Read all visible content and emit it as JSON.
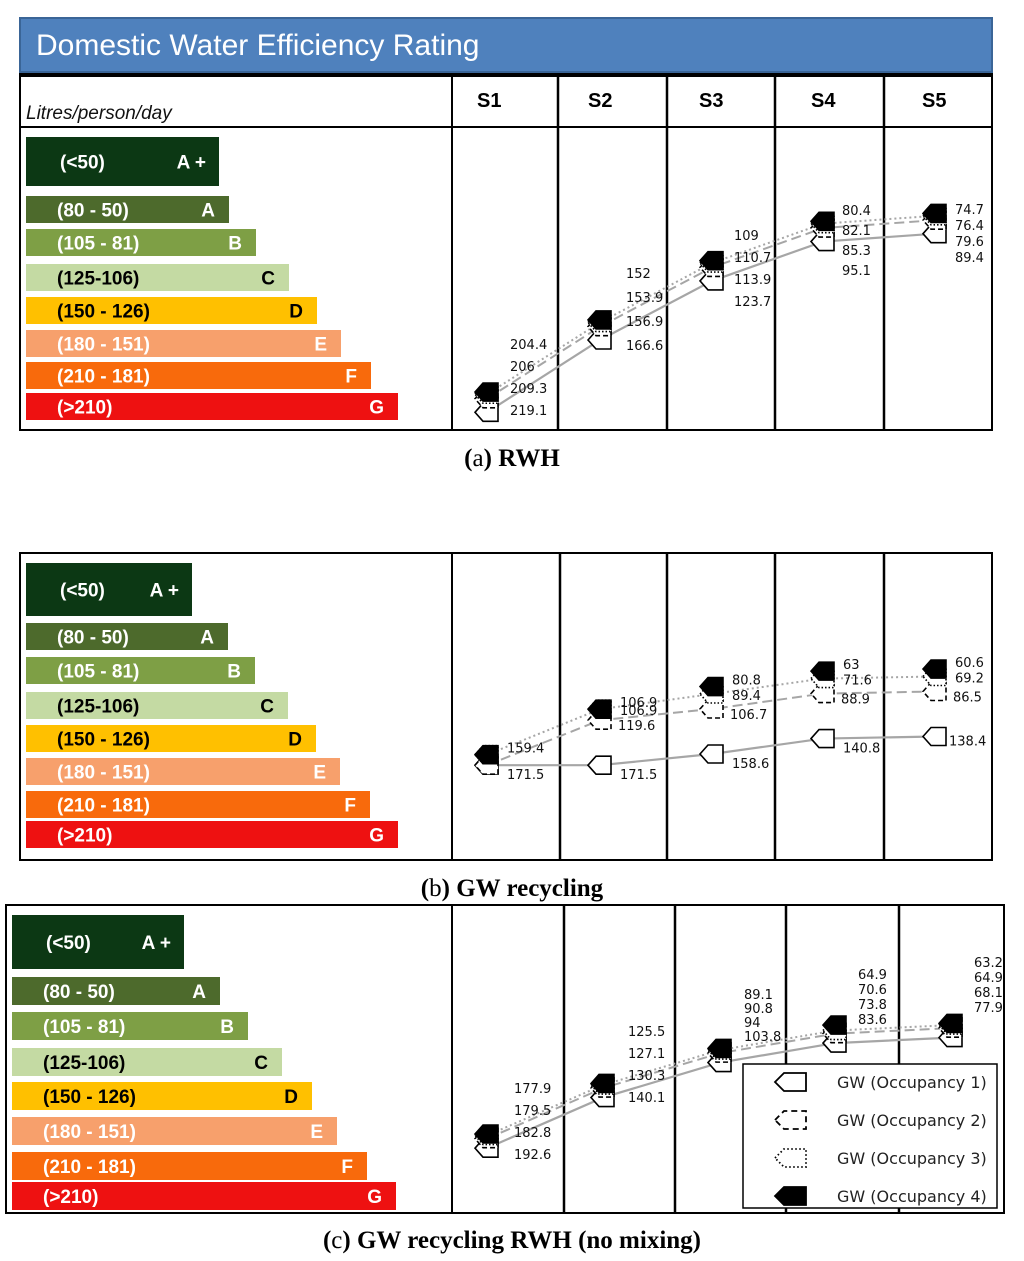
{
  "header": {
    "title": "Domestic Water Efficiency Rating",
    "units": "Litres/person/day",
    "columns": [
      "S1",
      "S2",
      "S3",
      "S4",
      "S5"
    ]
  },
  "rating_bands": [
    {
      "range": "(<50)",
      "grade": "A +",
      "color": "#0c3814"
    },
    {
      "range": "(80 - 50)",
      "grade": "A",
      "color": "#4d6a2c"
    },
    {
      "range": "(105 - 81)",
      "grade": "B",
      "color": "#7e9f45"
    },
    {
      "range": "(125-106)",
      "grade": "C",
      "color": "#c4daa3"
    },
    {
      "range": "(150 - 126)",
      "grade": "D",
      "color": "#ffc000"
    },
    {
      "range": "(180 - 151)",
      "grade": "E",
      "color": "#f7a06c"
    },
    {
      "range": "(210 - 181)",
      "grade": "F",
      "color": "#f86a0c"
    },
    {
      "range": "(>210)",
      "grade": "G",
      "color": "#ee1111"
    }
  ],
  "colors": {
    "title_bar": "#4f81bd",
    "series_line": "#a6a6a6",
    "marker_fill": "#000000"
  },
  "legend": {
    "occupancy_1": "GW (Occupancy 1)",
    "occupancy_2": "GW (Occupancy 2)",
    "occupancy_3": "GW (Occupancy 3)",
    "occupancy_4": "GW (Occupancy 4)"
  },
  "chart_data": [
    {
      "type": "line",
      "title": "(a) RWH",
      "caption_letter": "a",
      "caption_text": " RWH",
      "categories": [
        "S1",
        "S2",
        "S3",
        "S4",
        "S5"
      ],
      "ylabel": "Litres/person/day",
      "series": [
        {
          "name": "GW (Occupancy 1)",
          "values": [
            219.1,
            166.6,
            123.7,
            95.1,
            89.4
          ]
        },
        {
          "name": "GW (Occupancy 2)",
          "values": [
            209.3,
            156.9,
            113.9,
            85.3,
            79.6
          ]
        },
        {
          "name": "GW (Occupancy 3)",
          "values": [
            206,
            153.9,
            110.7,
            82.1,
            76.4
          ]
        },
        {
          "name": "GW (Occupancy 4)",
          "values": [
            204.4,
            152,
            109,
            80.4,
            74.7
          ]
        }
      ]
    },
    {
      "type": "line",
      "title": "(b) GW recycling",
      "caption_letter": "b",
      "caption_text": " GW recycling",
      "categories": [
        "S1",
        "S2",
        "S3",
        "S4",
        "S5"
      ],
      "ylabel": "Litres/person/day",
      "series": [
        {
          "name": "GW (Occupancy 1)",
          "values": [
            171.5,
            171.5,
            158.6,
            140.8,
            138.4
          ]
        },
        {
          "name": "GW (Occupancy 2)",
          "values": [
            171.5,
            119.6,
            106.7,
            88.9,
            86.5
          ]
        },
        {
          "name": "GW (Occupancy 3)",
          "values": [
            159.4,
            106.9,
            89.4,
            71.6,
            69.2
          ]
        },
        {
          "name": "GW (Occupancy 4)",
          "values": [
            159.4,
            106.9,
            80.8,
            63,
            60.6
          ]
        }
      ]
    },
    {
      "type": "line",
      "title": "(c) GW recycling RWH (no mixing)",
      "caption_letter": "c",
      "caption_text": " GW recycling RWH (no mixing)",
      "categories": [
        "S1",
        "S2",
        "S3",
        "S4",
        "S5"
      ],
      "ylabel": "Litres/person/day",
      "series": [
        {
          "name": "GW (Occupancy 1)",
          "values": [
            192.6,
            140.1,
            103.8,
            83.6,
            77.9
          ]
        },
        {
          "name": "GW (Occupancy 2)",
          "values": [
            182.8,
            130.3,
            94,
            73.8,
            68.1
          ]
        },
        {
          "name": "GW (Occupancy 3)",
          "values": [
            179.5,
            127.1,
            90.8,
            70.6,
            64.9
          ]
        },
        {
          "name": "GW (Occupancy 4)",
          "values": [
            177.9,
            125.5,
            89.1,
            64.9,
            63.2
          ]
        }
      ]
    }
  ]
}
